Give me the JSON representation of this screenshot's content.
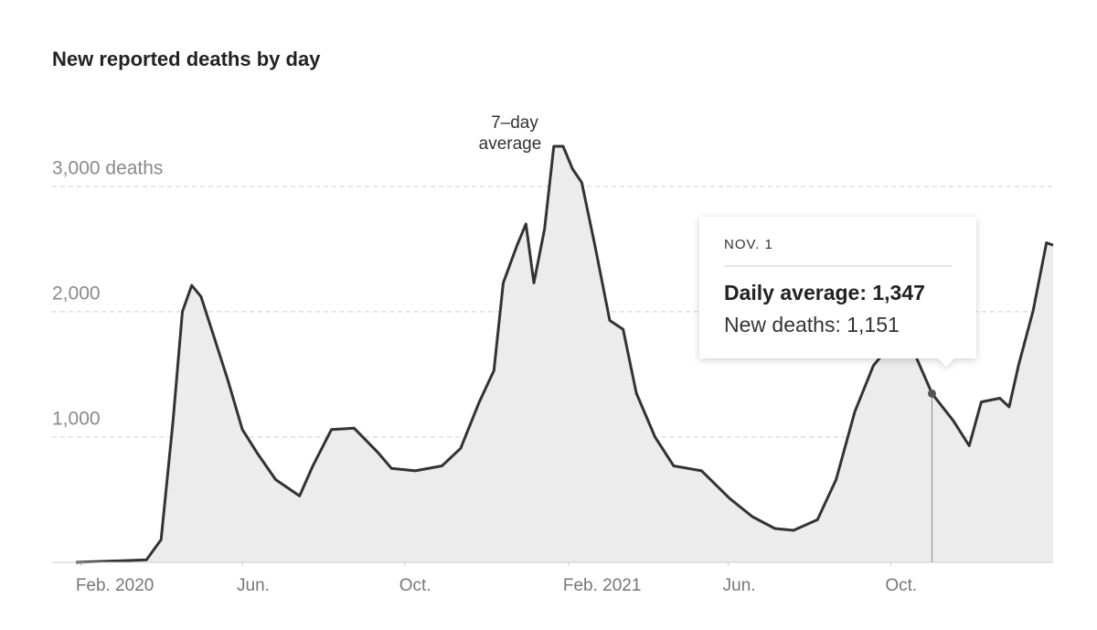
{
  "chart_data": {
    "type": "area-line",
    "title": "New reported deaths by day",
    "annotation": [
      "7–day",
      "average"
    ],
    "x": [
      "2020-01-28",
      "2020-03-21",
      "2020-04-01",
      "2020-04-10",
      "2020-04-17",
      "2020-04-24",
      "2020-05-01",
      "2020-05-11",
      "2020-05-21",
      "2020-06-01",
      "2020-06-12",
      "2020-06-26",
      "2020-07-14",
      "2020-07-24",
      "2020-08-07",
      "2020-08-24",
      "2020-09-11",
      "2020-09-21",
      "2020-10-09",
      "2020-10-29",
      "2020-11-12",
      "2020-11-26",
      "2020-12-07",
      "2020-12-14",
      "2020-12-24",
      "2020-12-31",
      "2021-01-06",
      "2021-01-14",
      "2021-01-21",
      "2021-01-28",
      "2021-02-04",
      "2021-02-11",
      "2021-02-21",
      "2021-03-04",
      "2021-03-14",
      "2021-03-24",
      "2021-04-07",
      "2021-04-21",
      "2021-05-12",
      "2021-06-02",
      "2021-06-19",
      "2021-07-06",
      "2021-07-20",
      "2021-08-07",
      "2021-08-21",
      "2021-09-04",
      "2021-09-18",
      "2021-10-02",
      "2021-10-20",
      "2021-11-01",
      "2021-11-17",
      "2021-11-29",
      "2021-12-08",
      "2021-12-22",
      "2021-12-29",
      "2022-01-05",
      "2022-01-16",
      "2022-01-26",
      "2022-01-31"
    ],
    "series": [
      {
        "name": "7–day average",
        "color": "#333333",
        "fill": "#ececec",
        "values": [
          0,
          20,
          180,
          1130,
          2000,
          2210,
          2120,
          1790,
          1460,
          1060,
          875,
          660,
          530,
          770,
          1060,
          1070,
          875,
          750,
          730,
          770,
          910,
          1280,
          1530,
          2230,
          2520,
          2700,
          2230,
          2660,
          3320,
          3320,
          3140,
          3030,
          2520,
          1930,
          1860,
          1350,
          1000,
          770,
          730,
          510,
          365,
          270,
          255,
          340,
          660,
          1200,
          1570,
          1750,
          1640,
          1347,
          1130,
          930,
          1280,
          1310,
          1240,
          1570,
          2010,
          2550,
          2530
        ]
      }
    ],
    "xlim": [
      "2020-01-28",
      "2022-01-31"
    ],
    "xticks": [
      {
        "value": "2020-02-01",
        "label": "Feb. 2020"
      },
      {
        "value": "2020-06-01",
        "label": "Jun."
      },
      {
        "value": "2020-10-01",
        "label": "Oct."
      },
      {
        "value": "2021-02-01",
        "label": "Feb. 2021"
      },
      {
        "value": "2021-06-01",
        "label": "Jun."
      },
      {
        "value": "2021-10-01",
        "label": "Oct."
      }
    ],
    "ylim": [
      0,
      3400
    ],
    "yticks": [
      {
        "value": 1000,
        "label": "1,000"
      },
      {
        "value": 2000,
        "label": "2,000"
      },
      {
        "value": 3000,
        "label": "3,000 deaths"
      }
    ],
    "grid": true,
    "tooltip": {
      "index": 49,
      "date": "NOV. 1",
      "lines": [
        "Daily average: 1,347",
        "New deaths: 1,151"
      ]
    }
  }
}
